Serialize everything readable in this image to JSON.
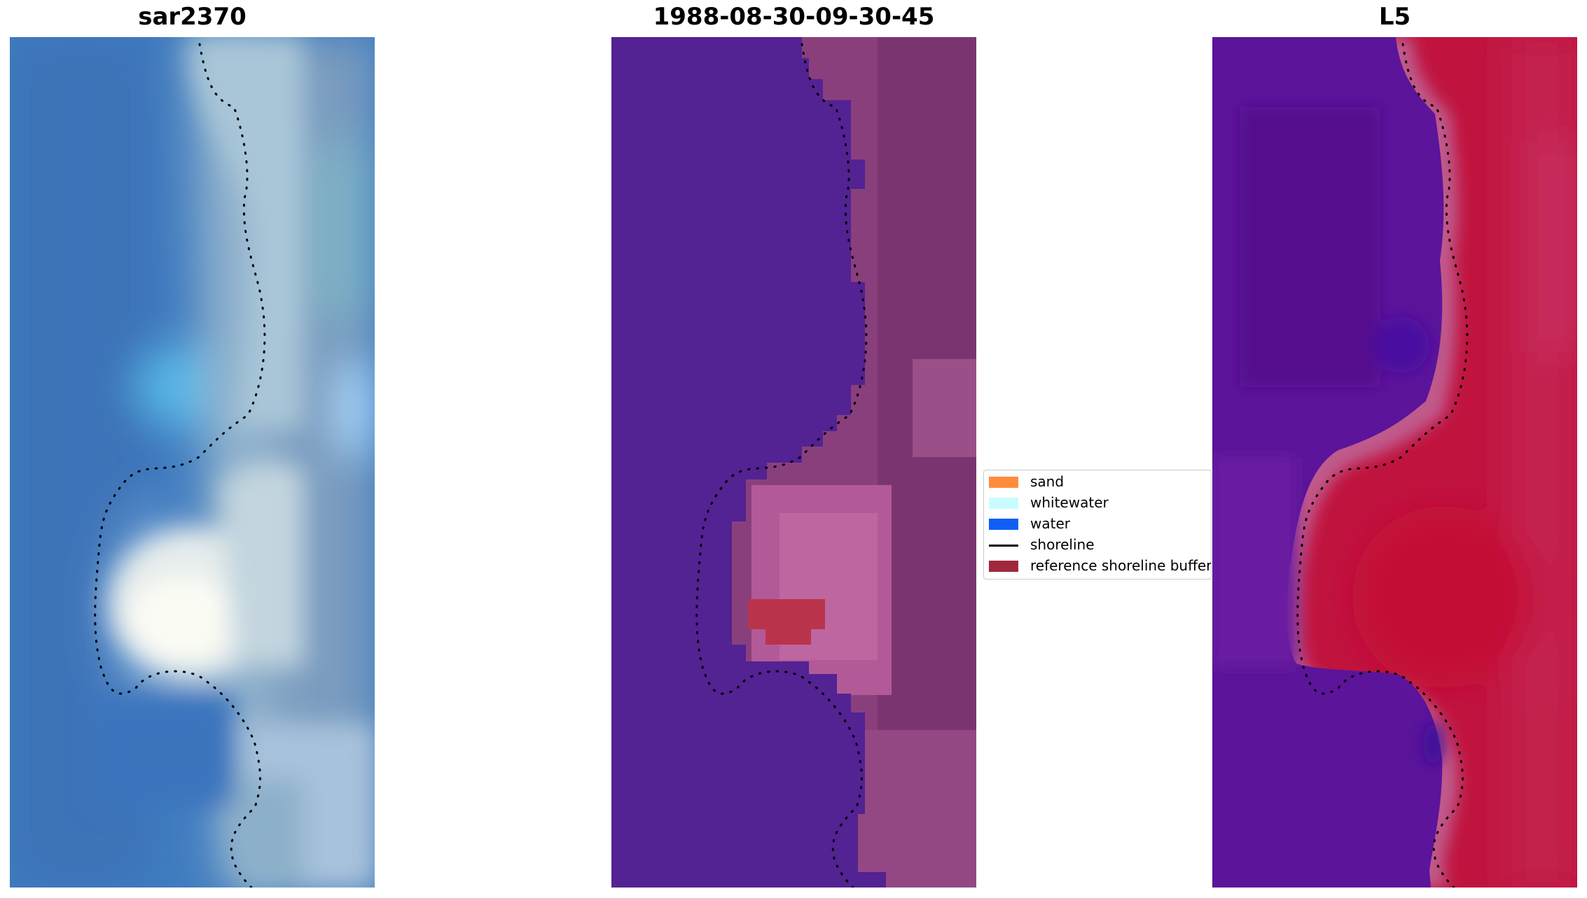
{
  "panels": [
    {
      "title": "sar2370"
    },
    {
      "title": "1988-08-30-09-30-45"
    },
    {
      "title": "L5"
    }
  ],
  "legend": {
    "items": [
      {
        "label": "sand",
        "color": "#ff8c3d",
        "kind": "patch"
      },
      {
        "label": "whitewater",
        "color": "#c8fcfd",
        "kind": "patch"
      },
      {
        "label": "water",
        "color": "#0f5ff5",
        "kind": "patch"
      },
      {
        "label": "shoreline",
        "color": "#000000",
        "kind": "line"
      },
      {
        "label": "reference shoreline buffer",
        "color": "#a0283c",
        "kind": "patch"
      }
    ]
  },
  "colors": {
    "rgb_water": "#3f7fc4",
    "rgb_shallow": "#56b6e6",
    "rgb_land": "#7f9fc0",
    "rgb_foam": "#f4f6f0",
    "classified_water": "#532293",
    "classified_land": "#8a3f7d",
    "classified_buffer": "#b9344a",
    "index_water": "#5b149a",
    "index_land": "#c0143f",
    "index_edge": "#c05a8c",
    "shoreline": "#000000"
  }
}
